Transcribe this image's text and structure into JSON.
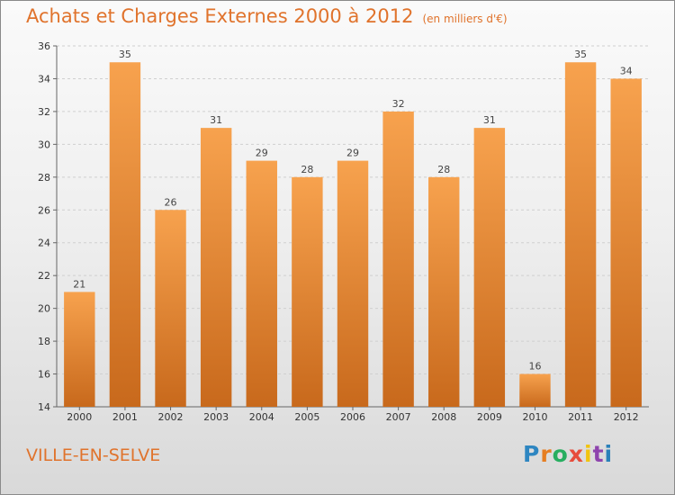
{
  "header": {
    "title": "Achats et Charges Externes 2000 à 2012",
    "unit": "(en milliers d'€)"
  },
  "footer": {
    "town": "VILLE-EN-SELVE",
    "logo": {
      "letters": [
        "P",
        "r",
        "o",
        "x",
        "i",
        "t",
        "i"
      ],
      "colors": [
        "#2e86c1",
        "#e67e22",
        "#27ae60",
        "#e74c3c",
        "#f1c40f",
        "#8e44ad",
        "#2980b9"
      ]
    }
  },
  "chart_data": {
    "type": "bar",
    "categories": [
      "2000",
      "2001",
      "2002",
      "2003",
      "2004",
      "2005",
      "2006",
      "2007",
      "2008",
      "2009",
      "2010",
      "2011",
      "2012"
    ],
    "values": [
      21,
      35,
      26,
      31,
      29,
      28,
      29,
      32,
      28,
      31,
      16,
      35,
      34
    ],
    "value_labels": [
      "21",
      "35",
      "26",
      "31",
      "29",
      "28",
      "29",
      "32",
      "28",
      "31",
      "16",
      "35",
      "34"
    ],
    "yticks": [
      "14",
      "16",
      "18",
      "20",
      "22",
      "24",
      "26",
      "28",
      "30",
      "32",
      "34",
      "36"
    ],
    "ylim": [
      14,
      36
    ],
    "grid": true,
    "colors": {
      "bar_light": "#f7a24e",
      "bar_dark": "#c8691c",
      "grid": "#cfcfcf",
      "axis": "#666666"
    }
  }
}
